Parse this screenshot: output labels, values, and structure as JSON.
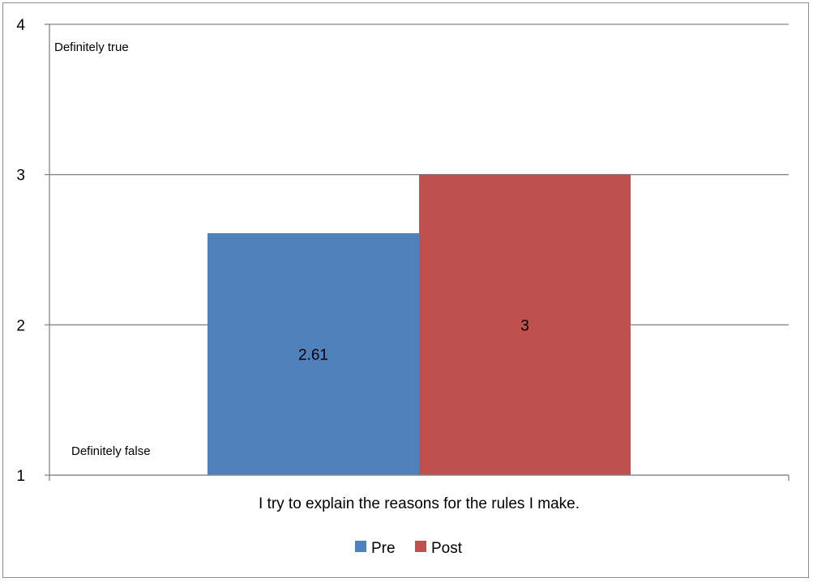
{
  "chart_data": {
    "type": "bar",
    "categories": [
      "I try to explain the reasons for the rules I make."
    ],
    "series": [
      {
        "name": "Pre",
        "values": [
          2.61
        ],
        "color": "#4f81bd"
      },
      {
        "name": "Post",
        "values": [
          3
        ],
        "color": "#c0504d"
      }
    ],
    "ylim": [
      1,
      4
    ],
    "yticks": [
      1,
      2,
      3,
      4
    ],
    "grid": true,
    "legend_position": "bottom",
    "annotations": {
      "top": "Definitely true",
      "bottom": "Definitely false"
    }
  }
}
